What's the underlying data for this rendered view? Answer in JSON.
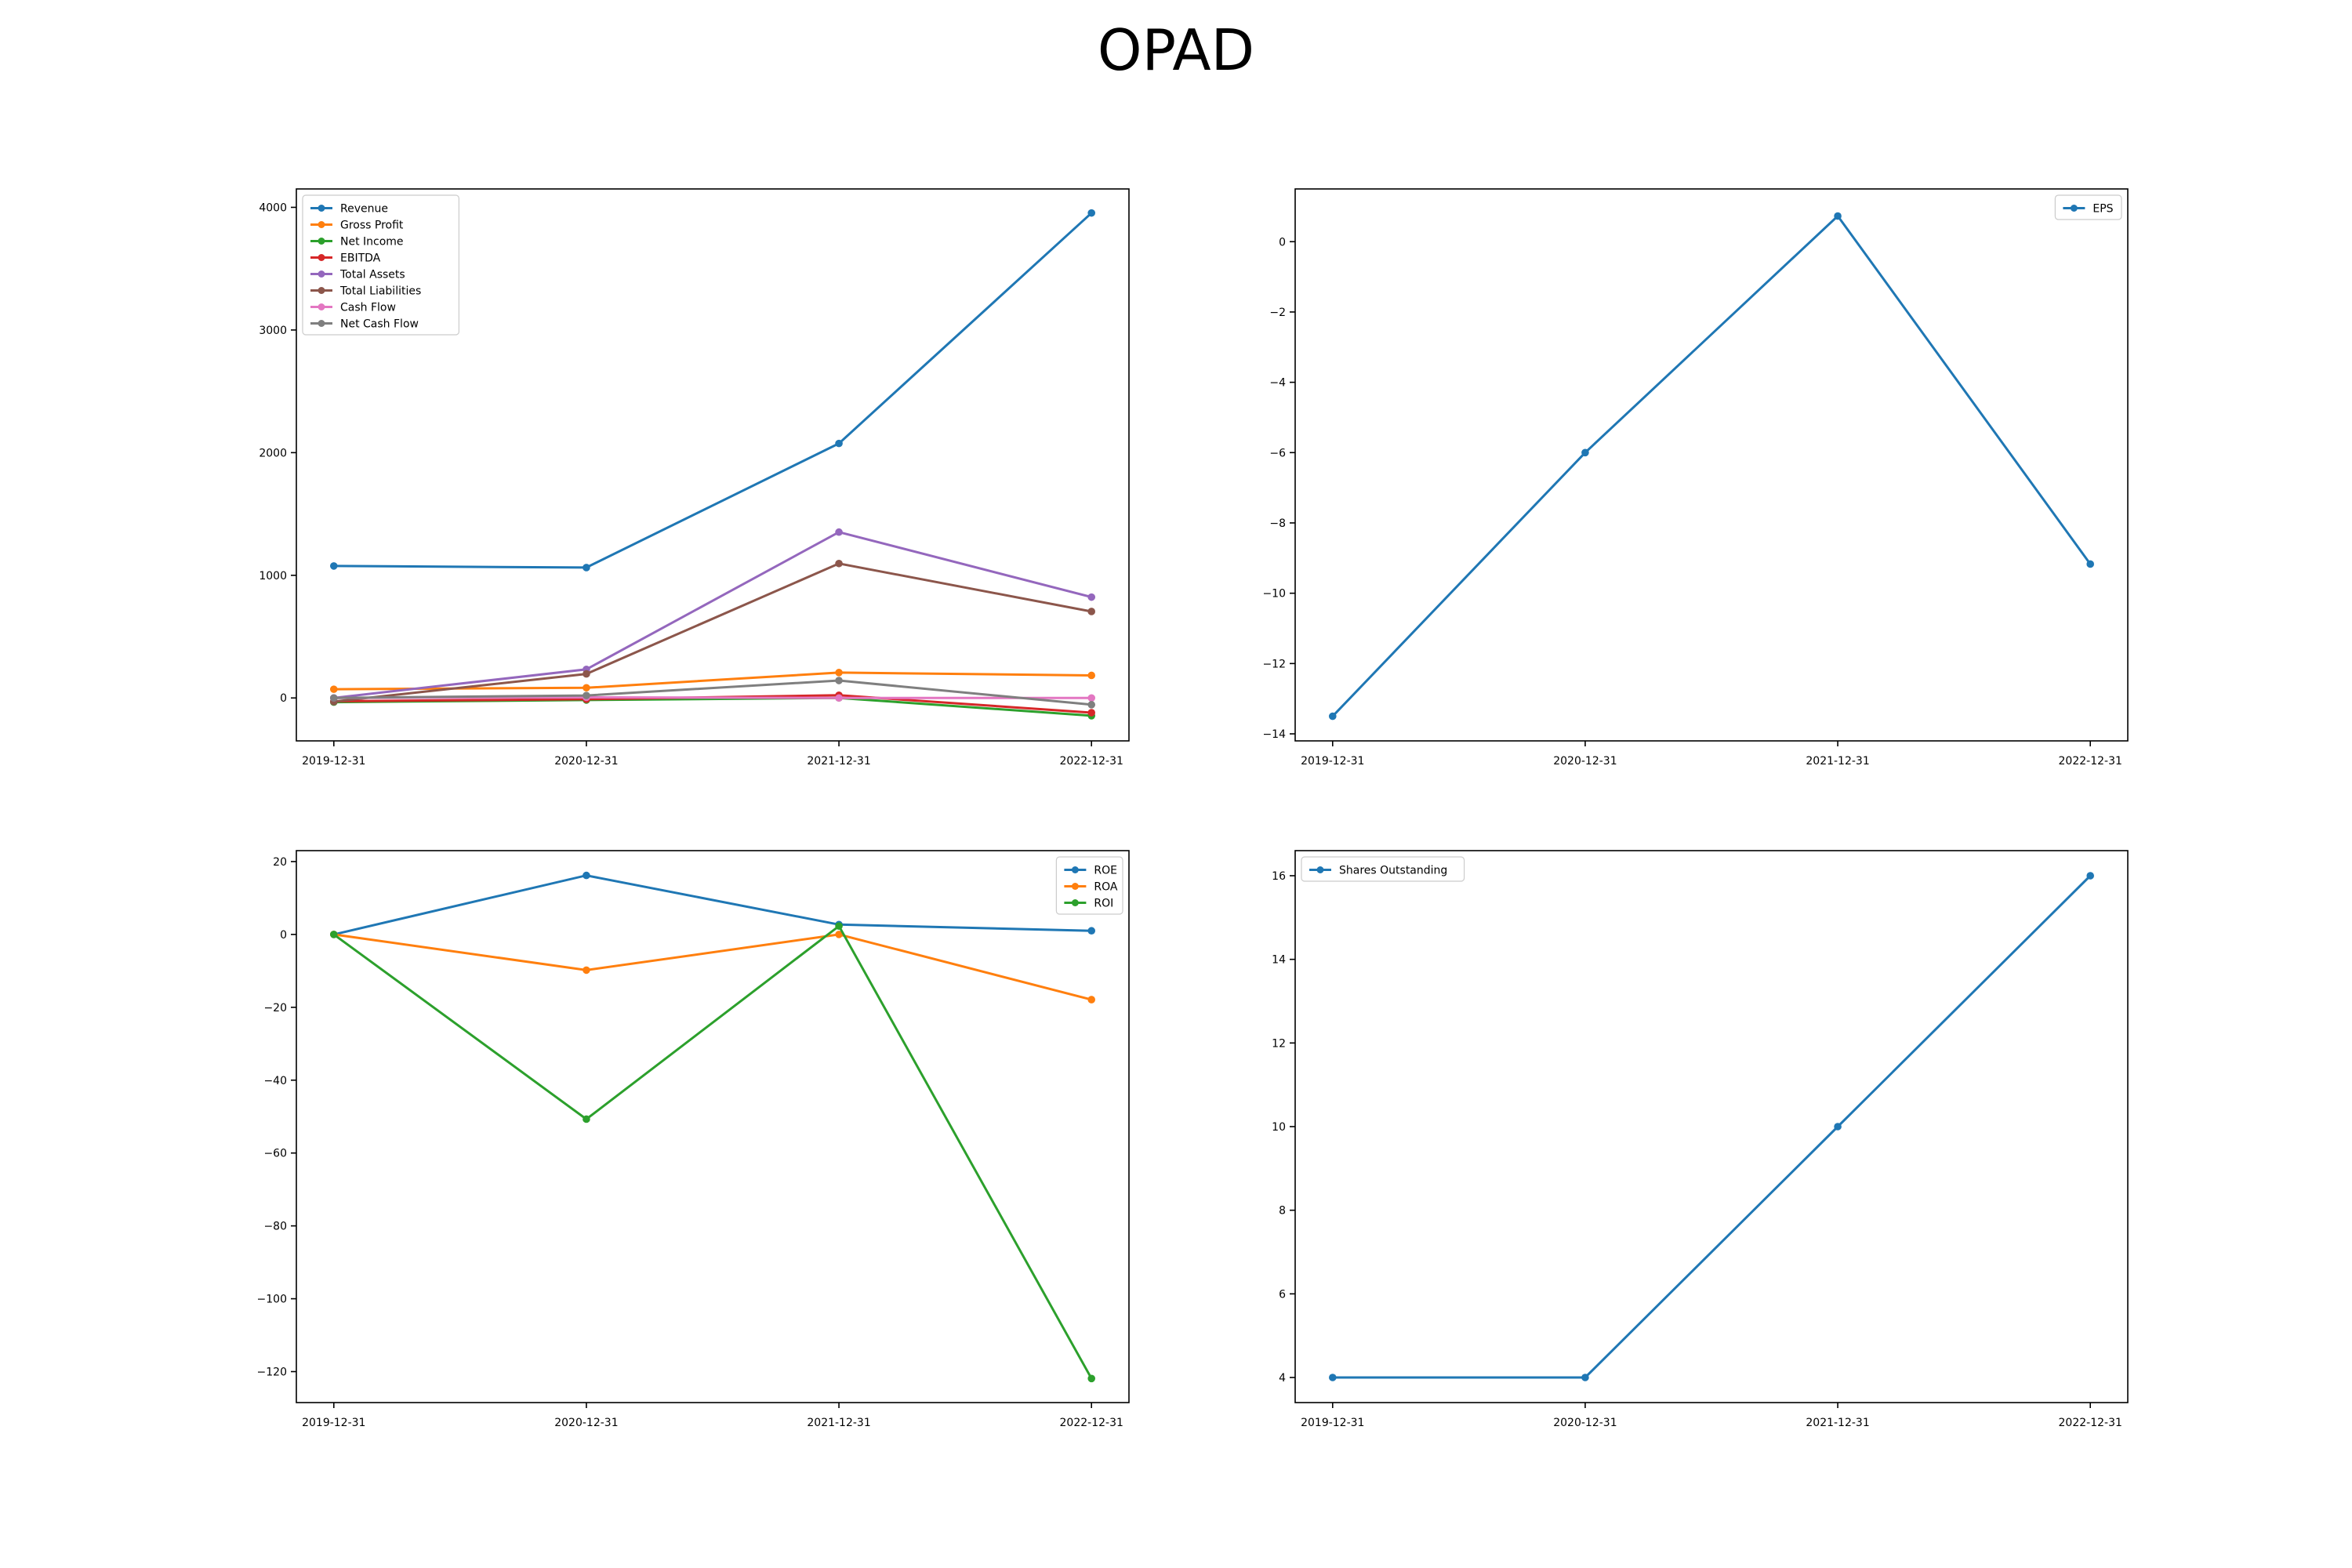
{
  "title": "OPAD",
  "chart_data": [
    {
      "type": "line",
      "x": [
        "2019-12-31",
        "2020-12-31",
        "2021-12-31",
        "2022-12-31"
      ],
      "ylim": [
        -350,
        4150
      ],
      "yticks": [
        0,
        1000,
        2000,
        3000,
        4000
      ],
      "legend_position": "upper left",
      "series": [
        {
          "name": "Revenue",
          "color": "#1f77b4",
          "values": [
            1076,
            1063,
            2075,
            3954
          ]
        },
        {
          "name": "Gross Profit",
          "color": "#ff7f0e",
          "values": [
            71,
            83,
            207,
            184
          ]
        },
        {
          "name": "Net Income",
          "color": "#2ca02c",
          "values": [
            -34,
            -17,
            0,
            -145
          ]
        },
        {
          "name": "EBITDA",
          "color": "#d62728",
          "values": [
            -27,
            -10,
            22,
            -120
          ]
        },
        {
          "name": "Total Assets",
          "color": "#9467bd",
          "values": [
            0,
            233,
            1352,
            822
          ]
        },
        {
          "name": "Total Liabilities",
          "color": "#8c564b",
          "values": [
            -30,
            196,
            1096,
            705
          ]
        },
        {
          "name": "Cash Flow",
          "color": "#e377c2",
          "values": [
            0,
            5,
            0,
            0
          ]
        },
        {
          "name": "Net Cash Flow",
          "color": "#7f7f7f",
          "values": [
            0,
            20,
            142,
            -55
          ]
        }
      ]
    },
    {
      "type": "line",
      "x": [
        "2019-12-31",
        "2020-12-31",
        "2021-12-31",
        "2022-12-31"
      ],
      "ylim": [
        -14.2,
        1.5
      ],
      "yticks": [
        -14,
        -12,
        -10,
        -8,
        -6,
        -4,
        -2,
        0
      ],
      "legend_position": "upper right",
      "series": [
        {
          "name": "EPS",
          "color": "#1f77b4",
          "values": [
            -13.5,
            -6.0,
            0.73,
            -9.17
          ]
        }
      ]
    },
    {
      "type": "line",
      "x": [
        "2019-12-31",
        "2020-12-31",
        "2021-12-31",
        "2022-12-31"
      ],
      "ylim": [
        -128.5,
        23
      ],
      "yticks": [
        -120,
        -100,
        -80,
        -60,
        -40,
        -20,
        0,
        20
      ],
      "legend_position": "upper right",
      "series": [
        {
          "name": "ROE",
          "color": "#1f77b4",
          "values": [
            0,
            16.2,
            2.7,
            1.0
          ]
        },
        {
          "name": "ROA",
          "color": "#ff7f0e",
          "values": [
            0,
            -9.8,
            0,
            -17.9
          ]
        },
        {
          "name": "ROI",
          "color": "#2ca02c",
          "values": [
            0,
            -50.7,
            2.3,
            -121.9
          ]
        }
      ]
    },
    {
      "type": "line",
      "x": [
        "2019-12-31",
        "2020-12-31",
        "2021-12-31",
        "2022-12-31"
      ],
      "ylim": [
        3.4,
        16.6
      ],
      "yticks": [
        4,
        6,
        8,
        10,
        12,
        14,
        16
      ],
      "legend_position": "upper left",
      "series": [
        {
          "name": "Shares Outstanding",
          "color": "#1f77b4",
          "values": [
            4,
            4,
            10,
            16
          ]
        }
      ]
    }
  ]
}
